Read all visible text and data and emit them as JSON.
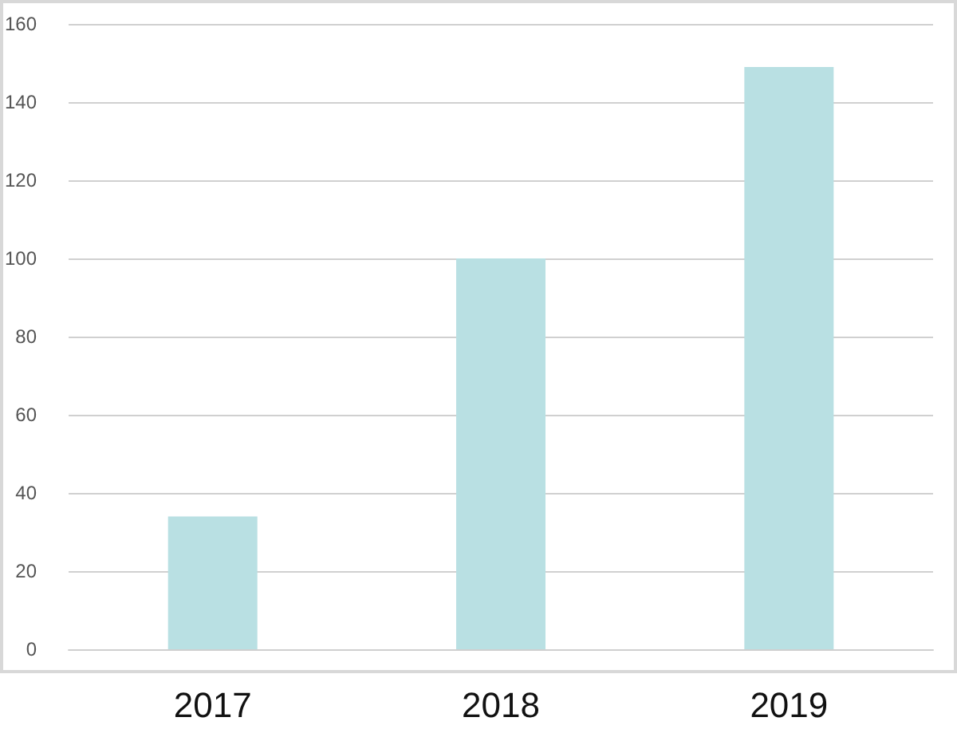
{
  "chart_data": {
    "type": "bar",
    "categories": [
      "2017",
      "2018",
      "2019"
    ],
    "values": [
      34,
      100,
      149
    ],
    "color": "#b9e0e3",
    "ylim": [
      0,
      160
    ],
    "yticks": [
      0,
      20,
      40,
      60,
      80,
      100,
      120,
      140,
      160
    ],
    "grid": "y"
  }
}
